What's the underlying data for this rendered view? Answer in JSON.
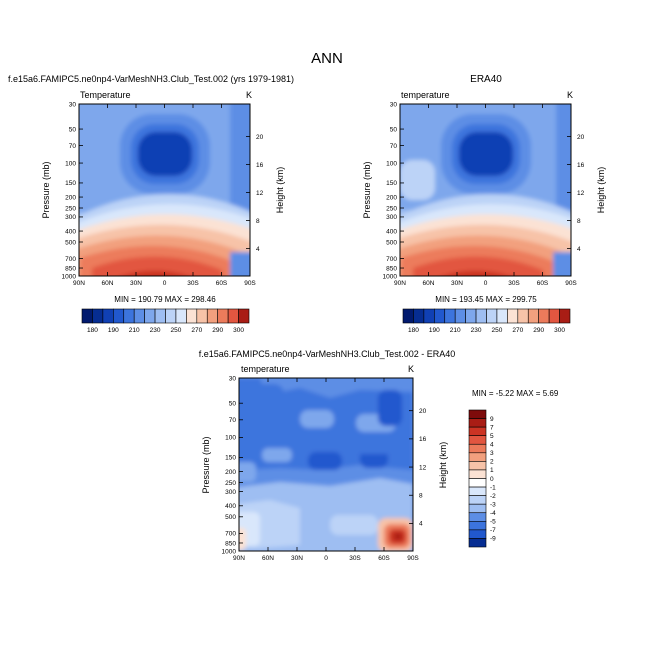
{
  "figure": {
    "title": "ANN"
  },
  "colors": {
    "warm": [
      "#fbe2d4",
      "#f7c3a8",
      "#f2a07e",
      "#ec7b5b",
      "#e25640",
      "#cc3424",
      "#a91d15",
      "#7e0b0b"
    ],
    "cool": [
      "#ffffff",
      "#d9e7fb",
      "#bcd3f7",
      "#9ebef2",
      "#7ea7ec",
      "#5d8ee5",
      "#3c74dd",
      "#2158ce",
      "#1040b4",
      "#062d92",
      "#011a6e"
    ],
    "frame": "#000000"
  },
  "chart_data": [
    {
      "type": "heatmap",
      "name": "model-temperature",
      "title": "f.e15a6.FAMIPC5.ne0np4-VarMeshNH3.Club_Test.002 (yrs 1979-1981)",
      "left_label": "Temperature",
      "right_label": "K",
      "ylabel": "Pressure (mb)",
      "y2label": "Height (km)",
      "x_ticks": [
        "90N",
        "60N",
        "30N",
        "0",
        "30S",
        "60S",
        "90S"
      ],
      "pressure_ticks": [
        "30",
        "50",
        "70",
        "100",
        "150",
        "200",
        "250",
        "300",
        "400",
        "500",
        "700",
        "850",
        "1000"
      ],
      "pressure_values": [
        30,
        50,
        70,
        100,
        150,
        200,
        250,
        300,
        400,
        500,
        700,
        850,
        1000
      ],
      "height_ticks": [
        "20",
        "16",
        "12",
        "8",
        "4"
      ],
      "stats": "MIN = 190.79   MAX = 298.46",
      "colorbar_labels": [
        "180",
        "190",
        "210",
        "230",
        "250",
        "270",
        "290",
        "300"
      ],
      "colorbar_levels": [
        180,
        185,
        190,
        200,
        210,
        220,
        230,
        240,
        250,
        260,
        270,
        280,
        290,
        295,
        300
      ],
      "colorbar_colors": [
        "#011a6e",
        "#062d92",
        "#1040b4",
        "#2158ce",
        "#3c74dd",
        "#5d8ee5",
        "#7ea7ec",
        "#9ebef2",
        "#bcd3f7",
        "#d9e7fb",
        "#fbe2d4",
        "#f7c3a8",
        "#f2a07e",
        "#ec7b5b",
        "#e25640",
        "#a91d15"
      ]
    },
    {
      "type": "heatmap",
      "name": "era40-temperature",
      "title": "ERA40",
      "left_label": "temperature",
      "right_label": "K",
      "ylabel": "Pressure (mb)",
      "y2label": "Height (km)",
      "x_ticks": [
        "90N",
        "60N",
        "30N",
        "0",
        "30S",
        "60S",
        "90S"
      ],
      "pressure_ticks": [
        "30",
        "50",
        "70",
        "100",
        "150",
        "200",
        "250",
        "300",
        "400",
        "500",
        "700",
        "850",
        "1000"
      ],
      "pressure_values": [
        30,
        50,
        70,
        100,
        150,
        200,
        250,
        300,
        400,
        500,
        700,
        850,
        1000
      ],
      "height_ticks": [
        "20",
        "16",
        "12",
        "8",
        "4"
      ],
      "stats": "MIN = 193.45   MAX = 299.75",
      "colorbar_labels": [
        "180",
        "190",
        "210",
        "230",
        "250",
        "270",
        "290",
        "300"
      ],
      "colorbar_levels": [
        180,
        185,
        190,
        200,
        210,
        220,
        230,
        240,
        250,
        260,
        270,
        280,
        290,
        295,
        300
      ],
      "colorbar_colors": [
        "#011a6e",
        "#062d92",
        "#1040b4",
        "#2158ce",
        "#3c74dd",
        "#5d8ee5",
        "#7ea7ec",
        "#9ebef2",
        "#bcd3f7",
        "#d9e7fb",
        "#fbe2d4",
        "#f7c3a8",
        "#f2a07e",
        "#ec7b5b",
        "#e25640",
        "#a91d15"
      ]
    },
    {
      "type": "heatmap",
      "name": "difference-temperature",
      "title": "f.e15a6.FAMIPC5.ne0np4-VarMeshNH3.Club_Test.002 - ERA40",
      "left_label": "temperature",
      "right_label": "K",
      "ylabel": "Pressure (mb)",
      "y2label": "Height (km)",
      "x_ticks": [
        "90N",
        "60N",
        "30N",
        "0",
        "30S",
        "60S",
        "90S"
      ],
      "pressure_ticks": [
        "30",
        "50",
        "70",
        "100",
        "150",
        "200",
        "250",
        "300",
        "400",
        "500",
        "700",
        "850",
        "1000"
      ],
      "pressure_values": [
        30,
        50,
        70,
        100,
        150,
        200,
        250,
        300,
        400,
        500,
        700,
        850,
        1000
      ],
      "height_ticks": [
        "20",
        "16",
        "12",
        "8",
        "4"
      ],
      "stats": "MIN = -5.22  MAX =   5.69",
      "colorbar_labels": [
        "9",
        "7",
        "5",
        "4",
        "3",
        "2",
        "1",
        "0",
        "-1",
        "-2",
        "-3",
        "-4",
        "-5",
        "-7",
        "-9"
      ],
      "colorbar_colors": [
        "#7e0b0b",
        "#a91d15",
        "#cc3424",
        "#e25640",
        "#ec7b5b",
        "#f2a07e",
        "#f7c3a8",
        "#fbe2d4",
        "#ffffff",
        "#d9e7fb",
        "#bcd3f7",
        "#9ebef2",
        "#5d8ee5",
        "#3c74dd",
        "#2158ce",
        "#062d92"
      ]
    }
  ]
}
